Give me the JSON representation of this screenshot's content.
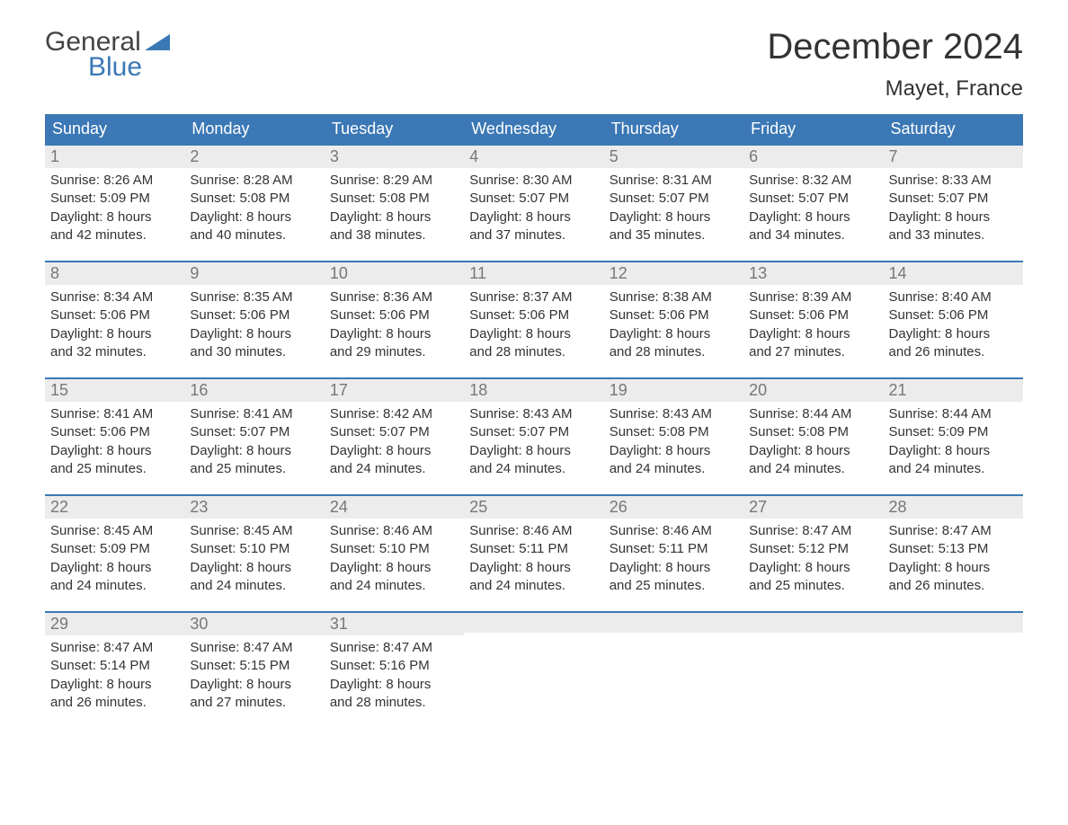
{
  "brand": {
    "line1": "General",
    "line2": "Blue",
    "colors": {
      "line1": "#444444",
      "line2": "#3b78b5",
      "triangle": "#3b78b5"
    }
  },
  "title": "December 2024",
  "location": "Mayet, France",
  "colors": {
    "header_bg": "#3b78b5",
    "header_text": "#ffffff",
    "week_border": "#3b78b5",
    "daynum_bg": "#ececec",
    "daynum_text": "#777777",
    "body_text": "#333333",
    "page_bg": "#ffffff"
  },
  "fonts": {
    "title_size_pt": 40,
    "location_size_pt": 24,
    "dow_size_pt": 18,
    "daynum_size_pt": 18,
    "body_size_pt": 15
  },
  "dow": [
    "Sunday",
    "Monday",
    "Tuesday",
    "Wednesday",
    "Thursday",
    "Friday",
    "Saturday"
  ],
  "weeks": [
    [
      {
        "n": "1",
        "sunrise": "Sunrise: 8:26 AM",
        "sunset": "Sunset: 5:09 PM",
        "d1": "Daylight: 8 hours",
        "d2": "and 42 minutes."
      },
      {
        "n": "2",
        "sunrise": "Sunrise: 8:28 AM",
        "sunset": "Sunset: 5:08 PM",
        "d1": "Daylight: 8 hours",
        "d2": "and 40 minutes."
      },
      {
        "n": "3",
        "sunrise": "Sunrise: 8:29 AM",
        "sunset": "Sunset: 5:08 PM",
        "d1": "Daylight: 8 hours",
        "d2": "and 38 minutes."
      },
      {
        "n": "4",
        "sunrise": "Sunrise: 8:30 AM",
        "sunset": "Sunset: 5:07 PM",
        "d1": "Daylight: 8 hours",
        "d2": "and 37 minutes."
      },
      {
        "n": "5",
        "sunrise": "Sunrise: 8:31 AM",
        "sunset": "Sunset: 5:07 PM",
        "d1": "Daylight: 8 hours",
        "d2": "and 35 minutes."
      },
      {
        "n": "6",
        "sunrise": "Sunrise: 8:32 AM",
        "sunset": "Sunset: 5:07 PM",
        "d1": "Daylight: 8 hours",
        "d2": "and 34 minutes."
      },
      {
        "n": "7",
        "sunrise": "Sunrise: 8:33 AM",
        "sunset": "Sunset: 5:07 PM",
        "d1": "Daylight: 8 hours",
        "d2": "and 33 minutes."
      }
    ],
    [
      {
        "n": "8",
        "sunrise": "Sunrise: 8:34 AM",
        "sunset": "Sunset: 5:06 PM",
        "d1": "Daylight: 8 hours",
        "d2": "and 32 minutes."
      },
      {
        "n": "9",
        "sunrise": "Sunrise: 8:35 AM",
        "sunset": "Sunset: 5:06 PM",
        "d1": "Daylight: 8 hours",
        "d2": "and 30 minutes."
      },
      {
        "n": "10",
        "sunrise": "Sunrise: 8:36 AM",
        "sunset": "Sunset: 5:06 PM",
        "d1": "Daylight: 8 hours",
        "d2": "and 29 minutes."
      },
      {
        "n": "11",
        "sunrise": "Sunrise: 8:37 AM",
        "sunset": "Sunset: 5:06 PM",
        "d1": "Daylight: 8 hours",
        "d2": "and 28 minutes."
      },
      {
        "n": "12",
        "sunrise": "Sunrise: 8:38 AM",
        "sunset": "Sunset: 5:06 PM",
        "d1": "Daylight: 8 hours",
        "d2": "and 28 minutes."
      },
      {
        "n": "13",
        "sunrise": "Sunrise: 8:39 AM",
        "sunset": "Sunset: 5:06 PM",
        "d1": "Daylight: 8 hours",
        "d2": "and 27 minutes."
      },
      {
        "n": "14",
        "sunrise": "Sunrise: 8:40 AM",
        "sunset": "Sunset: 5:06 PM",
        "d1": "Daylight: 8 hours",
        "d2": "and 26 minutes."
      }
    ],
    [
      {
        "n": "15",
        "sunrise": "Sunrise: 8:41 AM",
        "sunset": "Sunset: 5:06 PM",
        "d1": "Daylight: 8 hours",
        "d2": "and 25 minutes."
      },
      {
        "n": "16",
        "sunrise": "Sunrise: 8:41 AM",
        "sunset": "Sunset: 5:07 PM",
        "d1": "Daylight: 8 hours",
        "d2": "and 25 minutes."
      },
      {
        "n": "17",
        "sunrise": "Sunrise: 8:42 AM",
        "sunset": "Sunset: 5:07 PM",
        "d1": "Daylight: 8 hours",
        "d2": "and 24 minutes."
      },
      {
        "n": "18",
        "sunrise": "Sunrise: 8:43 AM",
        "sunset": "Sunset: 5:07 PM",
        "d1": "Daylight: 8 hours",
        "d2": "and 24 minutes."
      },
      {
        "n": "19",
        "sunrise": "Sunrise: 8:43 AM",
        "sunset": "Sunset: 5:08 PM",
        "d1": "Daylight: 8 hours",
        "d2": "and 24 minutes."
      },
      {
        "n": "20",
        "sunrise": "Sunrise: 8:44 AM",
        "sunset": "Sunset: 5:08 PM",
        "d1": "Daylight: 8 hours",
        "d2": "and 24 minutes."
      },
      {
        "n": "21",
        "sunrise": "Sunrise: 8:44 AM",
        "sunset": "Sunset: 5:09 PM",
        "d1": "Daylight: 8 hours",
        "d2": "and 24 minutes."
      }
    ],
    [
      {
        "n": "22",
        "sunrise": "Sunrise: 8:45 AM",
        "sunset": "Sunset: 5:09 PM",
        "d1": "Daylight: 8 hours",
        "d2": "and 24 minutes."
      },
      {
        "n": "23",
        "sunrise": "Sunrise: 8:45 AM",
        "sunset": "Sunset: 5:10 PM",
        "d1": "Daylight: 8 hours",
        "d2": "and 24 minutes."
      },
      {
        "n": "24",
        "sunrise": "Sunrise: 8:46 AM",
        "sunset": "Sunset: 5:10 PM",
        "d1": "Daylight: 8 hours",
        "d2": "and 24 minutes."
      },
      {
        "n": "25",
        "sunrise": "Sunrise: 8:46 AM",
        "sunset": "Sunset: 5:11 PM",
        "d1": "Daylight: 8 hours",
        "d2": "and 24 minutes."
      },
      {
        "n": "26",
        "sunrise": "Sunrise: 8:46 AM",
        "sunset": "Sunset: 5:11 PM",
        "d1": "Daylight: 8 hours",
        "d2": "and 25 minutes."
      },
      {
        "n": "27",
        "sunrise": "Sunrise: 8:47 AM",
        "sunset": "Sunset: 5:12 PM",
        "d1": "Daylight: 8 hours",
        "d2": "and 25 minutes."
      },
      {
        "n": "28",
        "sunrise": "Sunrise: 8:47 AM",
        "sunset": "Sunset: 5:13 PM",
        "d1": "Daylight: 8 hours",
        "d2": "and 26 minutes."
      }
    ],
    [
      {
        "n": "29",
        "sunrise": "Sunrise: 8:47 AM",
        "sunset": "Sunset: 5:14 PM",
        "d1": "Daylight: 8 hours",
        "d2": "and 26 minutes."
      },
      {
        "n": "30",
        "sunrise": "Sunrise: 8:47 AM",
        "sunset": "Sunset: 5:15 PM",
        "d1": "Daylight: 8 hours",
        "d2": "and 27 minutes."
      },
      {
        "n": "31",
        "sunrise": "Sunrise: 8:47 AM",
        "sunset": "Sunset: 5:16 PM",
        "d1": "Daylight: 8 hours",
        "d2": "and 28 minutes."
      },
      null,
      null,
      null,
      null
    ]
  ]
}
